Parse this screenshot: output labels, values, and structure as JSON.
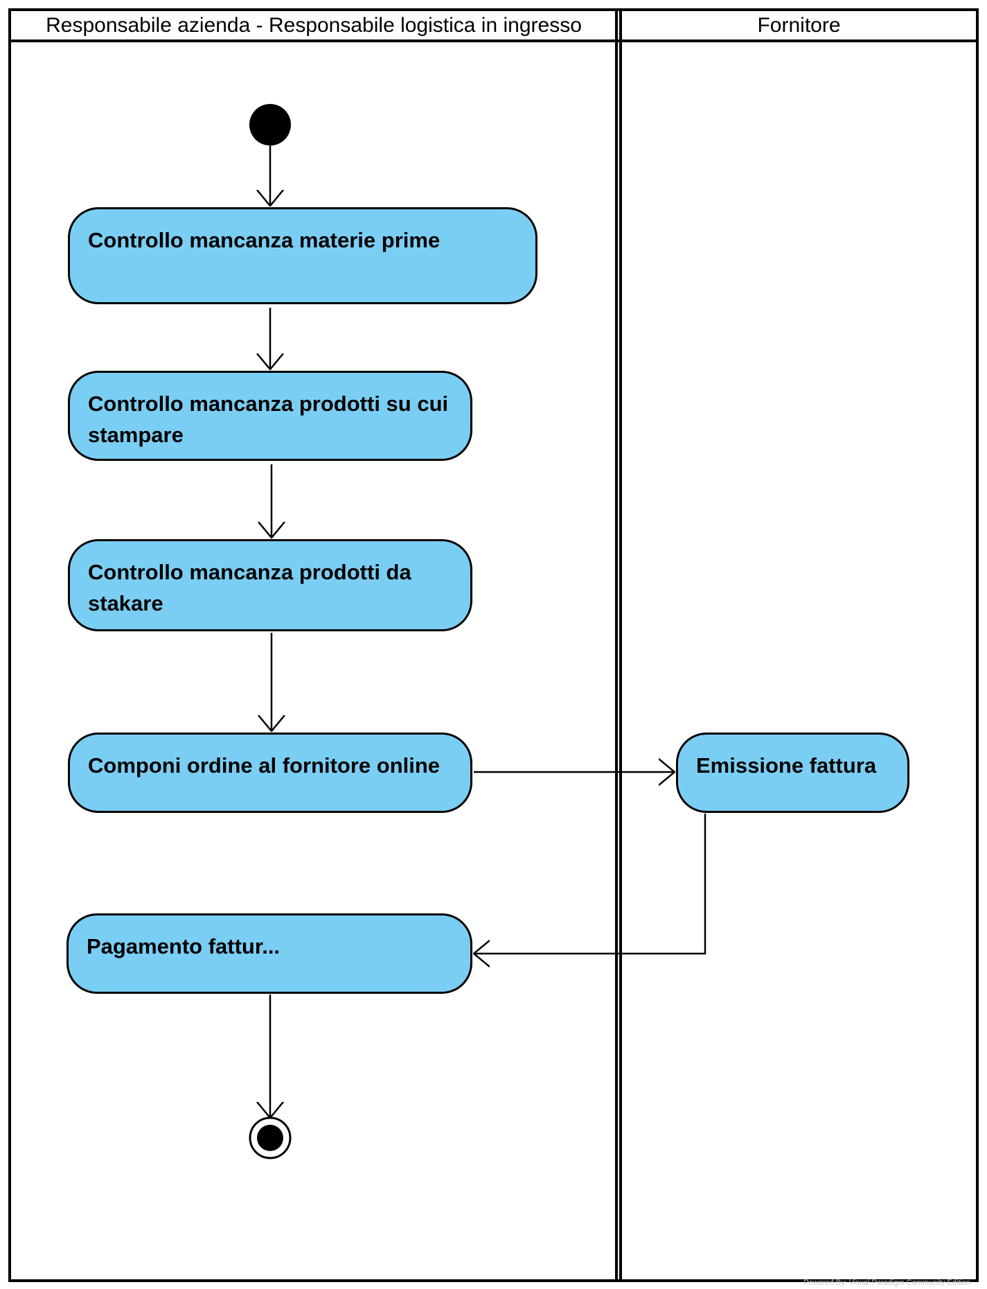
{
  "lanes": [
    {
      "title": "Responsabile azienda - Responsabile logistica in ingresso"
    },
    {
      "title": "Fornitore"
    }
  ],
  "actions": {
    "controllo_materie_prime": "Controllo mancanza materie  prime",
    "controllo_prodotti_stampare": "Controllo mancanza prodotti su cui stampare",
    "controllo_prodotti_stakare": "Controllo mancanza prodotti da stakare",
    "componi_ordine": "Componi ordine al fornitore online",
    "emissione_fattura": "Emissione fattura",
    "pagamento_fattura": "Pagamento  fattur..."
  },
  "watermark": "Powered By: Visual Paradigm Community Edition",
  "colors": {
    "action_fill": "#7bcef3",
    "stroke": "#000000",
    "background": "#ffffff"
  }
}
